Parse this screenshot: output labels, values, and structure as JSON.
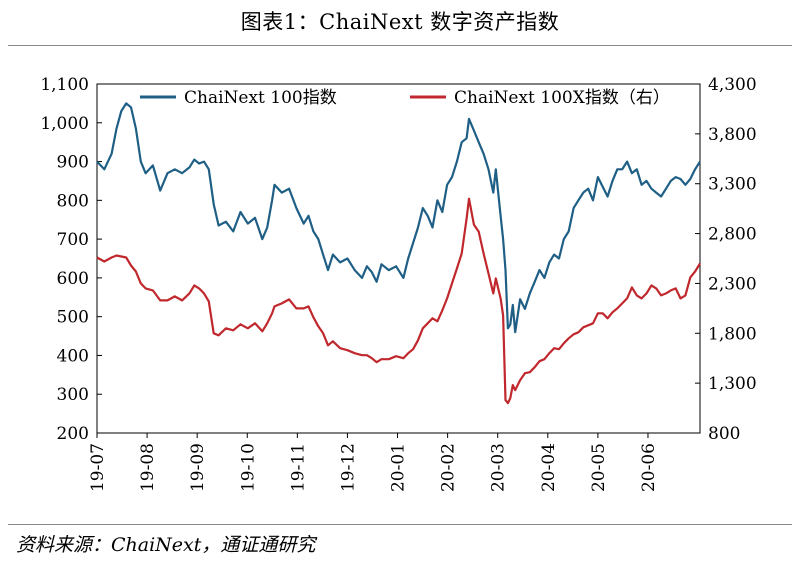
{
  "title": "图表1：ChaiNext 数字资产指数",
  "source": "资料来源：ChaiNext，通证通研究",
  "colors": {
    "series1": "#1f5f86",
    "series2": "#c0282d"
  },
  "chart_data": {
    "type": "line",
    "x_ticks": [
      "19-07",
      "19-08",
      "19-09",
      "19-10",
      "19-11",
      "19-12",
      "20-01",
      "20-02",
      "20-03",
      "20-04",
      "20-05",
      "20-06"
    ],
    "y_left": {
      "min": 200,
      "max": 1100,
      "ticks": [
        "200",
        "300",
        "400",
        "500",
        "600",
        "700",
        "800",
        "900",
        "1,000",
        "1,100"
      ]
    },
    "y_right": {
      "min": 800,
      "max": 4300,
      "ticks": [
        "800",
        "1,300",
        "1,800",
        "2,300",
        "2,800",
        "3,300",
        "3,800",
        "4,300"
      ]
    },
    "legend": {
      "placement": "top"
    },
    "series": [
      {
        "name": "ChaiNext 100指数",
        "axis": "left",
        "values": [
          [
            0,
            900
          ],
          [
            3,
            880
          ],
          [
            6,
            920
          ],
          [
            8,
            985
          ],
          [
            10,
            1030
          ],
          [
            12,
            1050
          ],
          [
            14,
            1040
          ],
          [
            16,
            985
          ],
          [
            18,
            900
          ],
          [
            20,
            870
          ],
          [
            23,
            890
          ],
          [
            26,
            825
          ],
          [
            29,
            870
          ],
          [
            32,
            880
          ],
          [
            35,
            870
          ],
          [
            38,
            885
          ],
          [
            40,
            905
          ],
          [
            42,
            895
          ],
          [
            44,
            900
          ],
          [
            46,
            880
          ],
          [
            48,
            790
          ],
          [
            50,
            735
          ],
          [
            53,
            745
          ],
          [
            56,
            720
          ],
          [
            59,
            770
          ],
          [
            62,
            740
          ],
          [
            65,
            755
          ],
          [
            68,
            700
          ],
          [
            70,
            730
          ],
          [
            72,
            800
          ],
          [
            73,
            840
          ],
          [
            76,
            820
          ],
          [
            79,
            830
          ],
          [
            82,
            780
          ],
          [
            85,
            740
          ],
          [
            87,
            760
          ],
          [
            89,
            720
          ],
          [
            91,
            700
          ],
          [
            93,
            660
          ],
          [
            95,
            620
          ],
          [
            97,
            660
          ],
          [
            100,
            640
          ],
          [
            103,
            650
          ],
          [
            106,
            620
          ],
          [
            109,
            600
          ],
          [
            111,
            630
          ],
          [
            113,
            615
          ],
          [
            115,
            590
          ],
          [
            117,
            635
          ],
          [
            120,
            620
          ],
          [
            123,
            630
          ],
          [
            126,
            600
          ],
          [
            128,
            650
          ],
          [
            130,
            690
          ],
          [
            132,
            730
          ],
          [
            134,
            780
          ],
          [
            136,
            760
          ],
          [
            138,
            730
          ],
          [
            140,
            800
          ],
          [
            142,
            770
          ],
          [
            144,
            840
          ],
          [
            146,
            860
          ],
          [
            148,
            900
          ],
          [
            150,
            950
          ],
          [
            152,
            960
          ],
          [
            153,
            1010
          ],
          [
            155,
            980
          ],
          [
            157,
            950
          ],
          [
            159,
            920
          ],
          [
            161,
            880
          ],
          [
            163,
            820
          ],
          [
            164,
            880
          ],
          [
            165,
            820
          ],
          [
            166,
            760
          ],
          [
            167,
            700
          ],
          [
            168,
            620
          ],
          [
            169,
            470
          ],
          [
            170,
            480
          ],
          [
            171,
            530
          ],
          [
            172,
            460
          ],
          [
            174,
            545
          ],
          [
            176,
            520
          ],
          [
            178,
            560
          ],
          [
            180,
            590
          ],
          [
            182,
            620
          ],
          [
            184,
            600
          ],
          [
            186,
            640
          ],
          [
            188,
            660
          ],
          [
            190,
            650
          ],
          [
            192,
            700
          ],
          [
            194,
            720
          ],
          [
            196,
            780
          ],
          [
            198,
            800
          ],
          [
            200,
            820
          ],
          [
            202,
            830
          ],
          [
            204,
            800
          ],
          [
            206,
            860
          ],
          [
            208,
            835
          ],
          [
            210,
            810
          ],
          [
            212,
            850
          ],
          [
            214,
            880
          ],
          [
            216,
            880
          ],
          [
            218,
            900
          ],
          [
            220,
            870
          ],
          [
            222,
            880
          ],
          [
            224,
            840
          ],
          [
            226,
            850
          ],
          [
            228,
            830
          ],
          [
            230,
            820
          ],
          [
            232,
            810
          ],
          [
            234,
            830
          ],
          [
            236,
            850
          ],
          [
            238,
            860
          ],
          [
            240,
            855
          ],
          [
            242,
            840
          ],
          [
            244,
            855
          ],
          [
            246,
            880
          ],
          [
            248,
            900
          ]
        ]
      },
      {
        "name": "ChaiNext 100X指数（右）",
        "axis": "right",
        "values": [
          [
            0,
            2560
          ],
          [
            3,
            2520
          ],
          [
            6,
            2560
          ],
          [
            8,
            2580
          ],
          [
            10,
            2570
          ],
          [
            12,
            2560
          ],
          [
            14,
            2480
          ],
          [
            16,
            2420
          ],
          [
            18,
            2300
          ],
          [
            20,
            2250
          ],
          [
            23,
            2230
          ],
          [
            26,
            2130
          ],
          [
            29,
            2130
          ],
          [
            32,
            2170
          ],
          [
            35,
            2130
          ],
          [
            38,
            2200
          ],
          [
            40,
            2280
          ],
          [
            42,
            2250
          ],
          [
            44,
            2200
          ],
          [
            46,
            2120
          ],
          [
            48,
            1800
          ],
          [
            50,
            1780
          ],
          [
            53,
            1850
          ],
          [
            56,
            1830
          ],
          [
            59,
            1890
          ],
          [
            62,
            1850
          ],
          [
            65,
            1900
          ],
          [
            68,
            1820
          ],
          [
            70,
            1900
          ],
          [
            72,
            2000
          ],
          [
            73,
            2070
          ],
          [
            76,
            2100
          ],
          [
            79,
            2140
          ],
          [
            82,
            2050
          ],
          [
            85,
            2050
          ],
          [
            87,
            2070
          ],
          [
            89,
            1960
          ],
          [
            91,
            1870
          ],
          [
            93,
            1800
          ],
          [
            95,
            1680
          ],
          [
            97,
            1720
          ],
          [
            100,
            1650
          ],
          [
            103,
            1630
          ],
          [
            106,
            1600
          ],
          [
            109,
            1580
          ],
          [
            111,
            1580
          ],
          [
            113,
            1550
          ],
          [
            115,
            1510
          ],
          [
            117,
            1540
          ],
          [
            120,
            1540
          ],
          [
            123,
            1570
          ],
          [
            126,
            1550
          ],
          [
            128,
            1600
          ],
          [
            130,
            1640
          ],
          [
            132,
            1730
          ],
          [
            134,
            1850
          ],
          [
            136,
            1900
          ],
          [
            138,
            1950
          ],
          [
            140,
            1920
          ],
          [
            142,
            2030
          ],
          [
            144,
            2150
          ],
          [
            146,
            2300
          ],
          [
            148,
            2450
          ],
          [
            150,
            2600
          ],
          [
            152,
            2950
          ],
          [
            153,
            3150
          ],
          [
            155,
            2890
          ],
          [
            157,
            2820
          ],
          [
            159,
            2600
          ],
          [
            161,
            2400
          ],
          [
            163,
            2200
          ],
          [
            164,
            2350
          ],
          [
            165,
            2250
          ],
          [
            166,
            2150
          ],
          [
            167,
            1980
          ],
          [
            168,
            1130
          ],
          [
            169,
            1100
          ],
          [
            170,
            1150
          ],
          [
            171,
            1280
          ],
          [
            172,
            1230
          ],
          [
            174,
            1330
          ],
          [
            176,
            1400
          ],
          [
            178,
            1410
          ],
          [
            180,
            1460
          ],
          [
            182,
            1520
          ],
          [
            184,
            1540
          ],
          [
            186,
            1600
          ],
          [
            188,
            1650
          ],
          [
            190,
            1640
          ],
          [
            192,
            1700
          ],
          [
            194,
            1750
          ],
          [
            196,
            1790
          ],
          [
            198,
            1810
          ],
          [
            200,
            1860
          ],
          [
            202,
            1880
          ],
          [
            204,
            1900
          ],
          [
            206,
            2000
          ],
          [
            208,
            2000
          ],
          [
            210,
            1950
          ],
          [
            212,
            2010
          ],
          [
            214,
            2050
          ],
          [
            216,
            2100
          ],
          [
            218,
            2150
          ],
          [
            220,
            2260
          ],
          [
            222,
            2180
          ],
          [
            224,
            2150
          ],
          [
            226,
            2200
          ],
          [
            228,
            2280
          ],
          [
            230,
            2250
          ],
          [
            232,
            2180
          ],
          [
            234,
            2200
          ],
          [
            236,
            2230
          ],
          [
            238,
            2250
          ],
          [
            240,
            2150
          ],
          [
            242,
            2180
          ],
          [
            244,
            2360
          ],
          [
            246,
            2420
          ],
          [
            248,
            2500
          ]
        ]
      }
    ]
  }
}
